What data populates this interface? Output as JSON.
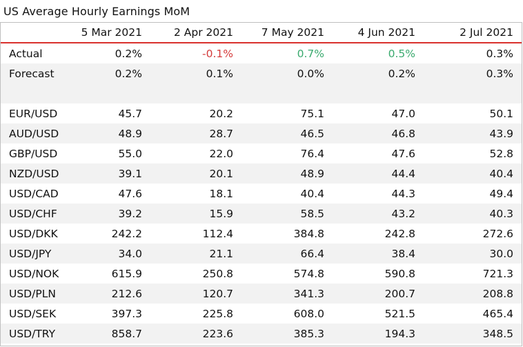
{
  "title": "US Average Hourly Earnings MoM",
  "columns": [
    "",
    "5 Mar 2021",
    "2 Apr 2021",
    "7 May 2021",
    "4 Jun 2021",
    "2 Jul 2021"
  ],
  "summary_rows": [
    {
      "label": "Actual",
      "values": [
        "0.2%",
        "-0.1%",
        "0.7%",
        "0.5%",
        "0.3%"
      ],
      "colors": [
        "",
        "neg",
        "pos",
        "pos",
        ""
      ]
    },
    {
      "label": "Forecast",
      "values": [
        "0.2%",
        "0.1%",
        "0.0%",
        "0.2%",
        "0.3%"
      ],
      "colors": [
        "",
        "",
        "",
        "",
        ""
      ]
    }
  ],
  "pair_rows": [
    {
      "label": "EUR/USD",
      "values": [
        "45.7",
        "20.2",
        "75.1",
        "47.0",
        "50.1"
      ]
    },
    {
      "label": "AUD/USD",
      "values": [
        "48.9",
        "28.7",
        "46.5",
        "46.8",
        "43.9"
      ]
    },
    {
      "label": "GBP/USD",
      "values": [
        "55.0",
        "22.0",
        "76.4",
        "47.6",
        "52.8"
      ]
    },
    {
      "label": "NZD/USD",
      "values": [
        "39.1",
        "20.1",
        "48.9",
        "44.4",
        "40.4"
      ]
    },
    {
      "label": "USD/CAD",
      "values": [
        "47.6",
        "18.1",
        "40.4",
        "44.3",
        "49.4"
      ]
    },
    {
      "label": "USD/CHF",
      "values": [
        "39.2",
        "15.9",
        "58.5",
        "43.2",
        "40.3"
      ]
    },
    {
      "label": "USD/DKK",
      "values": [
        "242.2",
        "112.4",
        "384.8",
        "242.8",
        "272.6"
      ]
    },
    {
      "label": "USD/JPY",
      "values": [
        "34.0",
        "21.1",
        "66.4",
        "38.4",
        "30.0"
      ]
    },
    {
      "label": "USD/NOK",
      "values": [
        "615.9",
        "250.8",
        "574.8",
        "590.8",
        "721.3"
      ]
    },
    {
      "label": "USD/PLN",
      "values": [
        "212.6",
        "120.7",
        "341.3",
        "200.7",
        "208.8"
      ]
    },
    {
      "label": "USD/SEK",
      "values": [
        "397.3",
        "225.8",
        "608.0",
        "521.5",
        "465.4"
      ]
    },
    {
      "label": "USD/TRY",
      "values": [
        "858.7",
        "223.6",
        "385.3",
        "194.3",
        "348.5"
      ]
    }
  ],
  "colors": {
    "header_rule": "#d9302c",
    "negative": "#d43b3b",
    "positive": "#3aaa6e",
    "stripe": "#f2f2f2"
  }
}
